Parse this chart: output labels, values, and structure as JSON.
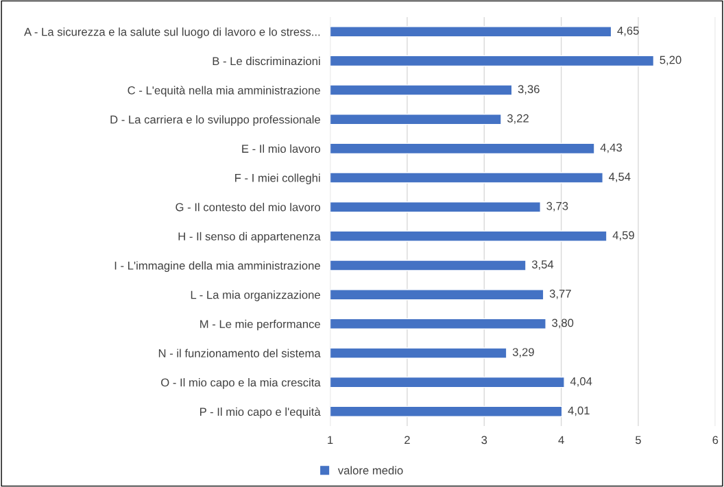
{
  "chart_data": {
    "type": "bar",
    "orientation": "horizontal",
    "categories": [
      "A - La sicurezza e la salute sul luogo di lavoro e lo stress...",
      "B - Le discriminazioni",
      "C - L'equità nella mia amministrazione",
      "D - La carriera e lo sviluppo professionale",
      "E - Il mio lavoro",
      "F - I miei colleghi",
      "G - Il contesto del mio lavoro",
      "H - Il senso di appartenenza",
      "I - L'immagine della mia amministrazione",
      "L - La mia organizzazione",
      "M - Le mie performance",
      "N - il funzionamento del sistema",
      "O - Il mio capo e la mia crescita",
      "P - Il mio capo e l'equità"
    ],
    "series": [
      {
        "name": "valore medio",
        "color": "#4472c4",
        "values": [
          4.65,
          5.2,
          3.36,
          3.22,
          4.43,
          4.54,
          3.73,
          4.59,
          3.54,
          3.77,
          3.8,
          3.29,
          4.04,
          4.01
        ],
        "value_labels": [
          "4,65",
          "5,20",
          "3,36",
          "3,22",
          "4,43",
          "4,54",
          "3,73",
          "4,59",
          "3,54",
          "3,77",
          "3,80",
          "3,29",
          "4,04",
          "4,01"
        ]
      }
    ],
    "xlim": [
      1,
      6
    ],
    "xticks": [
      1,
      2,
      3,
      4,
      5,
      6
    ],
    "grid": "x",
    "legend": "bottom"
  }
}
